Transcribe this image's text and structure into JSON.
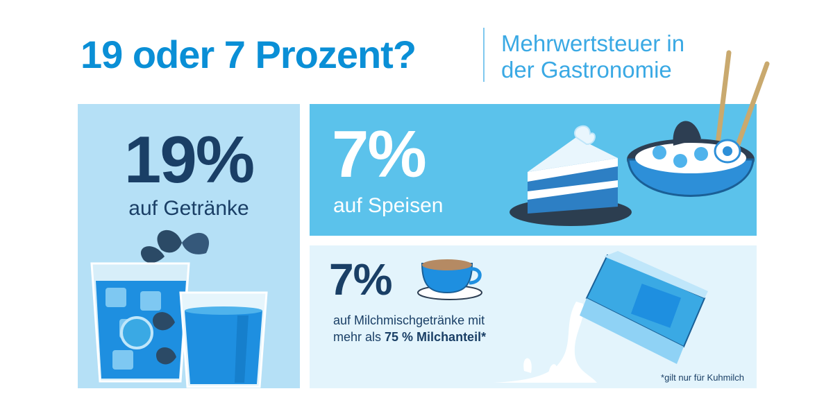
{
  "header": {
    "title": "19 oder 7 Prozent?",
    "subtitle_line1": "Mehrwertsteuer in",
    "subtitle_line2": "der Gastronomie"
  },
  "drinks": {
    "percent": "19%",
    "label": "auf Getränke"
  },
  "food": {
    "percent": "7%",
    "label": "auf Speisen"
  },
  "milk": {
    "percent": "7%",
    "desc_line1": "auf Milchmischgetränke mit",
    "desc_line2_pre": "mehr als ",
    "desc_line2_bold": "75 % Milchanteil*",
    "footnote": "*gilt nur für Kuhmilch"
  },
  "colors": {
    "title_blue": "#0a8fd6",
    "dark_navy": "#1a3f66",
    "light_panel": "#b5e0f6",
    "mid_panel": "#5bc2eb",
    "pale_panel": "#e3f4fc"
  },
  "icons": [
    "glass-icon",
    "cocktail-icon",
    "mint-leaf-icon",
    "cake-icon",
    "rice-bowl-icon",
    "chopsticks-icon",
    "coffee-cup-icon",
    "milk-carton-icon",
    "milk-splash-icon"
  ]
}
